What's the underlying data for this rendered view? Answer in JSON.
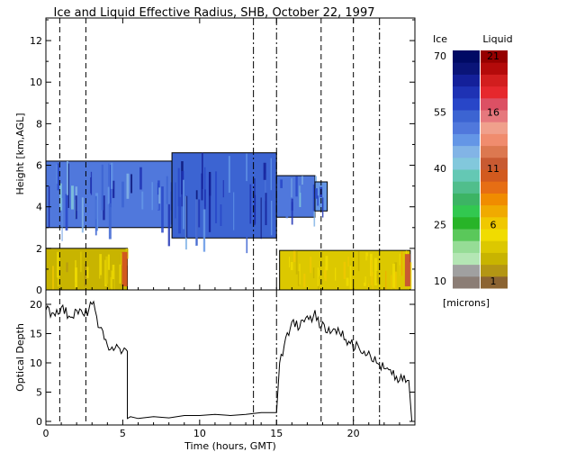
{
  "chart_data": [
    {
      "type": "heatmap",
      "title": "Ice and Liquid Effective Radius, SHB, October 22, 1997",
      "xlabel": "",
      "ylabel": "Height [km,AGL]",
      "xlim": [
        0,
        24
      ],
      "ylim": [
        0,
        13
      ],
      "xticks": [
        "0",
        "5",
        "10",
        "15",
        "20"
      ],
      "yticks": [
        "0",
        "2",
        "4",
        "6",
        "8",
        "10",
        "12"
      ],
      "event_lines": [
        {
          "t": 0.9,
          "style": "dash"
        },
        {
          "t": 2.6,
          "style": "dash"
        },
        {
          "t": 13.5,
          "style": "dashdot"
        },
        {
          "t": 15.0,
          "style": "dashdot"
        },
        {
          "t": 17.9,
          "style": "dash"
        },
        {
          "t": 20.0,
          "style": "dash"
        },
        {
          "t": 21.7,
          "style": "dashdot"
        }
      ],
      "cloud_layers": [
        {
          "phase": "ice",
          "t_start": 0.0,
          "t_end": 8.2,
          "z_bottom": 3.0,
          "z_top": 6.2,
          "radius_microns": 52
        },
        {
          "phase": "ice",
          "t_start": 8.2,
          "t_end": 15.0,
          "z_bottom": 2.5,
          "z_top": 6.6,
          "radius_microns": 55
        },
        {
          "phase": "ice",
          "t_start": 15.0,
          "t_end": 17.5,
          "z_bottom": 3.5,
          "z_top": 5.5,
          "radius_microns": 50
        },
        {
          "phase": "ice",
          "t_start": 17.5,
          "t_end": 18.3,
          "z_bottom": 3.8,
          "z_top": 5.2,
          "radius_microns": 48
        },
        {
          "phase": "liquid",
          "t_start": 0.0,
          "t_end": 5.3,
          "z_bottom": 0.0,
          "z_top": 2.0,
          "radius_microns": 3
        },
        {
          "phase": "liquid",
          "t_start": 15.2,
          "t_end": 23.7,
          "z_bottom": 0.0,
          "z_top": 1.9,
          "radius_microns": 4
        }
      ],
      "colorbar": {
        "ice_label": "Ice",
        "liquid_label": "Liquid",
        "units": "[microns]",
        "ice_ticks": [
          "70",
          "55",
          "40",
          "25",
          "10"
        ],
        "liquid_ticks": [
          "21",
          "16",
          "11",
          "6",
          "1"
        ],
        "ice_colors": [
          "#8b7d75",
          "#a0a0a0",
          "#b4e6b4",
          "#96dc96",
          "#5ac85a",
          "#28b428",
          "#32c850",
          "#3cb464",
          "#50be8c",
          "#64c8b4",
          "#82c8dc",
          "#82b4e6",
          "#6496e6",
          "#5078dc",
          "#3c64d2",
          "#2846c8",
          "#1e32b4",
          "#14209a",
          "#0a1478",
          "#000a64"
        ],
        "liquid_colors": [
          "#8c6432",
          "#b49614",
          "#c8b400",
          "#dcc800",
          "#f0dc00",
          "#f0c800",
          "#f0aa00",
          "#f08c00",
          "#e66e14",
          "#d25a1e",
          "#c85a32",
          "#dc7850",
          "#f08c6e",
          "#f0a08c",
          "#e6787d",
          "#dc5064",
          "#e6282d",
          "#d21e1e",
          "#b40a0a",
          "#960000"
        ]
      }
    },
    {
      "type": "line",
      "title": "",
      "xlabel": "Time (hours, GMT)",
      "ylabel": "Optical Depth",
      "xlim": [
        0,
        24
      ],
      "ylim": [
        0,
        20
      ],
      "xticks": [
        "0",
        "5",
        "10",
        "15",
        "20"
      ],
      "yticks": [
        "0",
        "5",
        "10",
        "15",
        "20"
      ],
      "x": [
        0.0,
        0.5,
        1.0,
        1.5,
        2.0,
        2.5,
        3.0,
        3.2,
        3.5,
        3.8,
        4.0,
        4.5,
        5.0,
        5.3,
        5.3,
        5.5,
        6.0,
        7.0,
        8.0,
        9.0,
        10.0,
        11.0,
        12.0,
        13.0,
        14.0,
        14.5,
        15.0,
        15.2,
        15.5,
        16.0,
        16.5,
        17.0,
        17.3,
        17.5,
        17.8,
        18.0,
        18.5,
        19.0,
        19.5,
        19.9,
        20.0,
        20.3,
        20.7,
        21.0,
        21.5,
        22.0,
        22.5,
        23.0,
        23.5,
        23.6,
        23.8
      ],
      "series": [
        {
          "values": [
            19.0,
            18.5,
            19.5,
            18.0,
            19.0,
            18.0,
            20.0,
            19.0,
            16.0,
            14.0,
            13.0,
            12.5,
            12.0,
            12.0,
            0.5,
            0.8,
            0.5,
            0.8,
            0.6,
            1.0,
            1.0,
            1.2,
            1.0,
            1.2,
            1.5,
            1.5,
            1.5,
            10.0,
            13.0,
            17.0,
            16.0,
            18.0,
            17.0,
            19.0,
            16.0,
            17.0,
            15.0,
            16.0,
            14.0,
            14.0,
            12.0,
            13.0,
            12.0,
            12.0,
            10.0,
            9.0,
            8.0,
            7.0,
            7.0,
            7.0,
            0.0
          ]
        }
      ]
    }
  ]
}
